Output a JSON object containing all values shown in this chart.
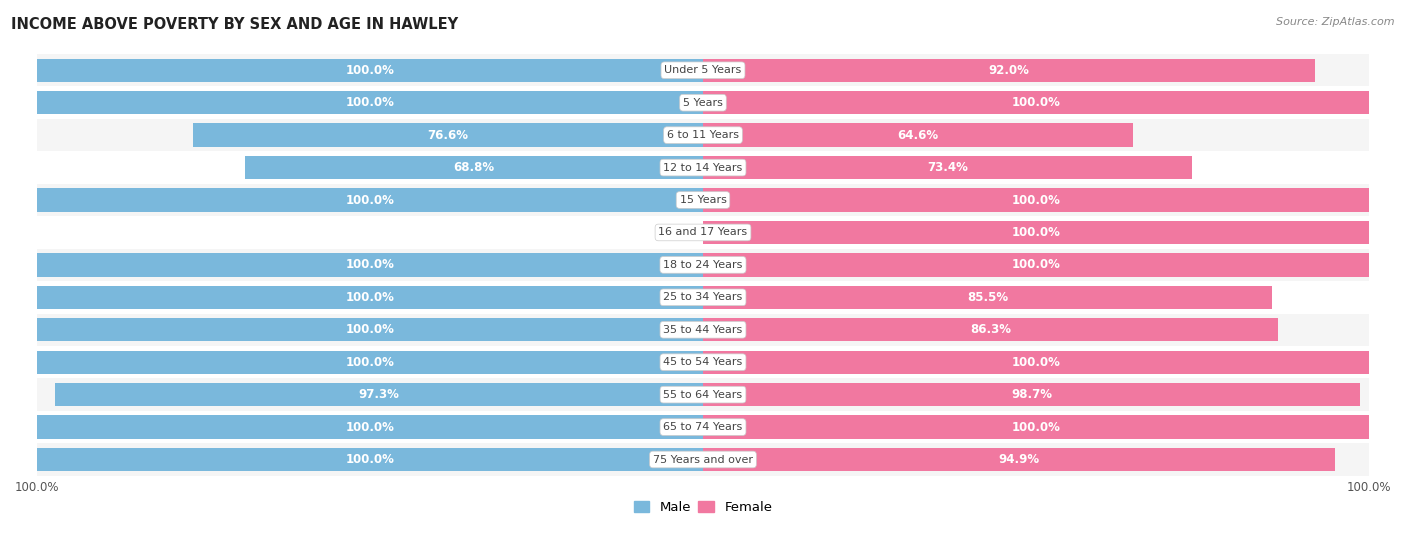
{
  "title": "INCOME ABOVE POVERTY BY SEX AND AGE IN HAWLEY",
  "source": "Source: ZipAtlas.com",
  "categories": [
    "Under 5 Years",
    "5 Years",
    "6 to 11 Years",
    "12 to 14 Years",
    "15 Years",
    "16 and 17 Years",
    "18 to 24 Years",
    "25 to 34 Years",
    "35 to 44 Years",
    "45 to 54 Years",
    "55 to 64 Years",
    "65 to 74 Years",
    "75 Years and over"
  ],
  "male_values": [
    100.0,
    100.0,
    76.6,
    68.8,
    100.0,
    0.0,
    100.0,
    100.0,
    100.0,
    100.0,
    97.3,
    100.0,
    100.0
  ],
  "female_values": [
    92.0,
    100.0,
    64.6,
    73.4,
    100.0,
    100.0,
    100.0,
    85.5,
    86.3,
    100.0,
    98.7,
    100.0,
    94.9
  ],
  "male_color": "#7ab8dc",
  "female_color": "#f178a0",
  "male_label_color": "#ffffff",
  "female_label_color": "#ffffff",
  "background_color": "#ffffff",
  "row_even_color": "#f5f5f5",
  "row_odd_color": "#ffffff",
  "bar_height": 0.72,
  "xlim_left": -100,
  "xlim_right": 100,
  "label_fontsize": 8.5,
  "cat_fontsize": 8.0,
  "legend_male_color": "#7ab8dc",
  "legend_female_color": "#f178a0"
}
